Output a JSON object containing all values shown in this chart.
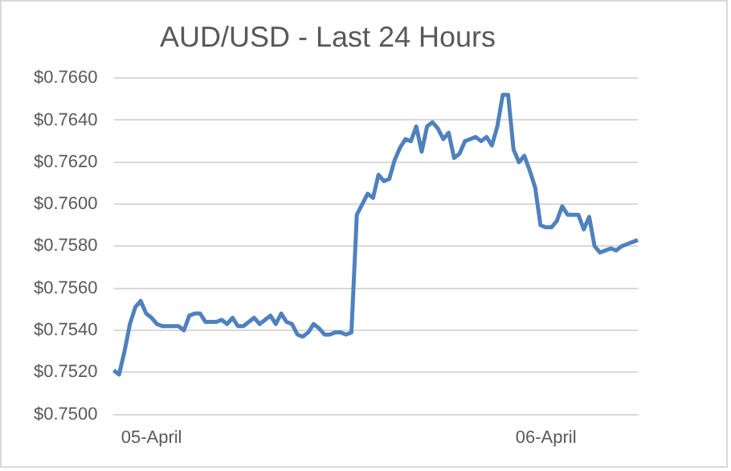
{
  "chart_data": {
    "type": "line",
    "title": "AUD/USD - Last 24 Hours",
    "categories": [
      null,
      null,
      null,
      null,
      null,
      null,
      null,
      "05-April",
      null,
      null,
      null,
      null,
      null,
      null,
      null,
      null,
      null,
      null,
      null,
      null,
      null,
      null,
      null,
      null,
      null,
      null,
      null,
      null,
      null,
      null,
      null,
      null,
      null,
      null,
      null,
      null,
      null,
      null,
      null,
      null,
      null,
      null,
      null,
      null,
      null,
      null,
      null,
      null,
      null,
      null,
      null,
      null,
      null,
      null,
      null,
      null,
      null,
      null,
      null,
      null,
      null,
      null,
      null,
      null,
      null,
      null,
      null,
      null,
      null,
      null,
      null,
      null,
      null,
      null,
      null,
      null,
      null,
      null,
      null,
      null,
      "06-April",
      null,
      null,
      null,
      null,
      null,
      null,
      null,
      null,
      null,
      null,
      null,
      null,
      null,
      null,
      null,
      null,
      null
    ],
    "series": [
      {
        "color": "#4f81bd",
        "values": [
          0.7521,
          0.7519,
          0.753,
          0.7543,
          0.7551,
          0.7554,
          0.7548,
          0.7546,
          0.7543,
          0.7542,
          0.7542,
          0.7542,
          0.7542,
          0.754,
          0.7547,
          0.7548,
          0.7548,
          0.7544,
          0.7544,
          0.7544,
          0.7545,
          0.7543,
          0.7546,
          0.7542,
          0.7542,
          0.7544,
          0.7546,
          0.7543,
          0.7545,
          0.7547,
          0.7543,
          0.7548,
          0.7544,
          0.7543,
          0.7538,
          0.7537,
          0.7539,
          0.7543,
          0.7541,
          0.7538,
          0.7538,
          0.7539,
          0.7539,
          0.7538,
          0.7539,
          0.7595,
          0.76,
          0.7605,
          0.7603,
          0.7614,
          0.7611,
          0.7612,
          0.7621,
          0.7627,
          0.7631,
          0.763,
          0.7637,
          0.7625,
          0.7637,
          0.7639,
          0.7636,
          0.7631,
          0.7634,
          0.7622,
          0.7624,
          0.763,
          0.7631,
          0.7632,
          0.763,
          0.7632,
          0.7628,
          0.7637,
          0.7652,
          0.7652,
          0.7626,
          0.762,
          0.7623,
          0.7616,
          0.7608,
          0.759,
          0.7589,
          0.7589,
          0.7592,
          0.7599,
          0.7595,
          0.7595,
          0.7595,
          0.7588,
          0.7594,
          0.758,
          0.7577,
          0.7578,
          0.7579,
          0.7578,
          0.758,
          0.7581,
          0.7582,
          0.7583
        ]
      }
    ],
    "ylim": [
      0.75,
      0.766
    ],
    "yticks": [
      {
        "value": 0.75,
        "label": "$0.7500"
      },
      {
        "value": 0.752,
        "label": "$0.7520"
      },
      {
        "value": 0.754,
        "label": "$0.7540"
      },
      {
        "value": 0.756,
        "label": "$0.7560"
      },
      {
        "value": 0.758,
        "label": "$0.7580"
      },
      {
        "value": 0.76,
        "label": "$0.7600"
      },
      {
        "value": 0.762,
        "label": "$0.7620"
      },
      {
        "value": 0.764,
        "label": "$0.7640"
      },
      {
        "value": 0.766,
        "label": "$0.7660"
      }
    ],
    "grid": "y",
    "legend": false,
    "marker": "none",
    "line_style": "solid"
  }
}
